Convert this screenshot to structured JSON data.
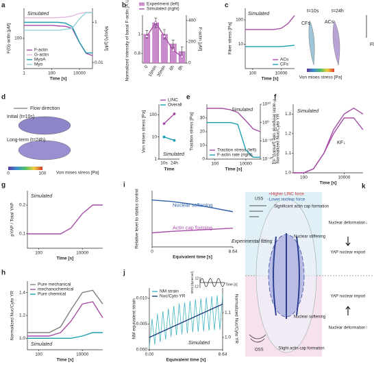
{
  "chart_data": [
    {
      "label": "a",
      "type": "line",
      "x": [
        1,
        3,
        10,
        30,
        100,
        300,
        1000,
        3000,
        10000,
        30000,
        86400
      ],
      "xlim": [
        1,
        86400
      ],
      "xlog": true,
      "xticks": [
        1,
        100,
        10000
      ],
      "xlabel": "Time [s]",
      "ylim": [
        20,
        500
      ],
      "ylog": true,
      "yticks": [
        100
      ],
      "ylabel": "F(G)-actin [μM]",
      "y2lim": [
        0.005,
        5
      ],
      "y2log": true,
      "y2ticks": [
        1,
        0.01
      ],
      "y2label": "Myo(A) [μM]",
      "annotations": [
        "Simulated"
      ],
      "legend": "lower left",
      "series": [
        {
          "name": "F-actin",
          "color": "#a64ca6",
          "values": [
            200,
            200,
            200,
            200,
            200,
            195,
            190,
            170,
            80,
            45,
            40
          ]
        },
        {
          "name": "G-actin",
          "color": "#e3b5de",
          "values": [
            300,
            300,
            300,
            300,
            300,
            305,
            310,
            330,
            380,
            400,
            400
          ]
        },
        {
          "name": "MyoA",
          "color": "#1a9fb0",
          "axis": "y2",
          "values": [
            1,
            1,
            1,
            1,
            1,
            1,
            0.9,
            0.6,
            0.1,
            0.03,
            0.03
          ]
        },
        {
          "name": "Myo",
          "color": "#8fd3da",
          "axis": "y2",
          "values": [
            0.4,
            0.4,
            0.4,
            0.4,
            0.4,
            0.4,
            0.45,
            0.5,
            1.5,
            3,
            3
          ]
        }
      ]
    },
    {
      "label": "b",
      "type": "bar",
      "categories": [
        "0",
        "10min",
        "30min",
        "6h",
        "8h"
      ],
      "ylim": [
        0.7,
        1.2
      ],
      "yticks": [
        0.8,
        1
      ],
      "ylabel": "Normalized intensity of basal F-actin [A.U.]",
      "y2lim": [
        0,
        450
      ],
      "y2ticks": [
        0,
        200,
        400
      ],
      "y2label": "F-actin [μM]",
      "legend": "top",
      "series": [
        {
          "name": "Experiment (left)",
          "color": "#c88ccc",
          "values": [
            1.0,
            1.12,
            1.0,
            0.9,
            0.82
          ],
          "errors": [
            0.04,
            0.05,
            0.05,
            0.04,
            0.05
          ]
        },
        {
          "name": "Simulated (right)",
          "color": "#a64ca6",
          "axis": "y2",
          "values": [
            250,
            380,
            250,
            120,
            60
          ]
        }
      ]
    },
    {
      "label": "c",
      "type": "line",
      "x": [
        30,
        100,
        300,
        1000,
        3000,
        10000,
        30000,
        86400
      ],
      "xlim": [
        30,
        86400
      ],
      "xlog": true,
      "xticks": [
        100,
        10000
      ],
      "xlabel": "Time [s]",
      "ylim": [
        1,
        300
      ],
      "ylog": true,
      "yticks": [
        10,
        100
      ],
      "ylabel": "Fiber stress [Pa]",
      "legend": "lower right",
      "annotations": [
        "Simulated",
        "t=10s",
        "t=24h",
        "CFs",
        "ACs",
        "Flow direction"
      ],
      "colorbar": {
        "label": "Von mises stress [Pa]"
      },
      "series": [
        {
          "name": "ACs",
          "color": "#a64ca6",
          "values": [
            40,
            40,
            40,
            40,
            40,
            45,
            70,
            150
          ]
        },
        {
          "name": "CFs",
          "color": "#1a9fb0",
          "values": [
            8,
            8,
            8,
            8,
            8,
            8,
            8.5,
            9
          ]
        }
      ]
    },
    {
      "label": "d",
      "type": "line",
      "categories": [
        "10s",
        "24h"
      ],
      "xlabel": "Time",
      "ylim": [
        1,
        300
      ],
      "ylog": true,
      "yticks": [
        1,
        10,
        100
      ],
      "ylabel": "Von mises stress [Pa]",
      "legend": "top right",
      "annotations": [
        "Simulated",
        "Flow direction",
        "Initial (t=10s)",
        "Long-term (t=24h)"
      ],
      "colorbar": {
        "ticks": [
          0,
          100
        ],
        "label": "Von mises stress [Pa]"
      },
      "series": [
        {
          "name": "LINC",
          "color": "#a64ca6",
          "values": [
            40,
            110
          ]
        },
        {
          "name": "Overall",
          "color": "#1a9fb0",
          "values": [
            10,
            7
          ]
        }
      ]
    },
    {
      "label": "e",
      "type": "line",
      "x": [
        30,
        100,
        300,
        1000,
        3000,
        10000,
        30000,
        86400
      ],
      "xlim": [
        30,
        86400
      ],
      "xlog": true,
      "xticks": [
        100,
        10000
      ],
      "xlabel": "Time [s]",
      "ylim": [
        0,
        40
      ],
      "yticks": [
        0,
        10,
        20,
        30
      ],
      "ylabel": "Traction stress [Pa]",
      "y2lim": [
        1e-20,
        10000000000.0
      ],
      "y2log": true,
      "y2ticks": [
        {
          "value": 10000000000.0,
          "label": "10¹⁰"
        },
        {
          "value": 1,
          "label": "10⁰"
        },
        {
          "value": 1e-10,
          "label": "10⁻¹⁰"
        },
        {
          "value": 1e-20,
          "label": "10⁻²⁰"
        }
      ],
      "y2label": "F-actin temporal rate [μmol/(L·s)]",
      "annotations": [
        "Simulated"
      ],
      "legend": "lower left",
      "series": [
        {
          "name": "Traction stress (left)",
          "color": "#a64ca6",
          "values": [
            37,
            37,
            37,
            36,
            34,
            28,
            22,
            20
          ]
        },
        {
          "name": "F-actin rate (right)",
          "color": "#1a9fb0",
          "axis": "y2",
          "values": [
            1,
            1,
            1,
            1,
            0.1,
            1e-15,
            1e-19,
            1e-19
          ]
        }
      ]
    },
    {
      "label": "f",
      "type": "line",
      "x": [
        30,
        100,
        300,
        1000,
        3000,
        10000,
        30000,
        86400
      ],
      "xlim": [
        30,
        86400
      ],
      "xlog": true,
      "xticks": [
        100,
        10000
      ],
      "xlabel": "Time [s]",
      "ylim": [
        1,
        1.35
      ],
      "yticks": [
        {
          "value": 1,
          "label": "1.0"
        },
        1.1,
        1.2,
        1.3
      ],
      "ylabel": "Normalized Nuc/Cyto YR",
      "annotations": [
        "Simulated",
        "KF↓"
      ],
      "series": [
        {
          "color": "#a64ca6",
          "values": [
            1,
            1,
            1.02,
            1.1,
            1.22,
            1.3,
            1.33,
            1.3
          ]
        },
        {
          "color": "#a64ca6",
          "values": [
            1,
            1,
            1.02,
            1.1,
            1.2,
            1.28,
            1.28,
            1.22
          ]
        }
      ]
    },
    {
      "label": "g",
      "type": "line",
      "x": [
        30,
        100,
        300,
        1000,
        3000,
        10000,
        30000,
        86400
      ],
      "xlim": [
        30,
        86400
      ],
      "xlog": true,
      "xticks": [
        100,
        10000
      ],
      "xlabel": "Time [s]",
      "ylim": [
        0.05,
        0.25
      ],
      "yticks": [
        0.1,
        0.2
      ],
      "ylabel": "pYAP / Total YAP",
      "annotations": [
        "Simulated"
      ],
      "series": [
        {
          "color": "#a64ca6",
          "values": [
            0.1,
            0.1,
            0.1,
            0.1,
            0.12,
            0.17,
            0.2,
            0.2
          ]
        }
      ]
    },
    {
      "label": "h",
      "type": "line",
      "x": [
        30,
        100,
        300,
        1000,
        3000,
        10000,
        30000,
        86400
      ],
      "xlim": [
        30,
        86400
      ],
      "xlog": true,
      "xticks": [
        100,
        10000
      ],
      "xlabel": "Time [s]",
      "ylim": [
        0.9,
        1.5
      ],
      "yticks": [
        {
          "value": 1,
          "label": "1.0"
        },
        1.2,
        1.4
      ],
      "ylabel": "Normalized Nuc/Cyto YR",
      "annotations": [
        "Simulated"
      ],
      "legend": "top left",
      "series": [
        {
          "name": "Pure mechanical",
          "color": "#7f7f7f",
          "values": [
            1.05,
            1.05,
            1.05,
            1.1,
            1.25,
            1.4,
            1.42,
            1.3
          ]
        },
        {
          "name": "mechanochemical",
          "color": "#a64ca6",
          "values": [
            1.02,
            1.02,
            1.02,
            1.05,
            1.15,
            1.3,
            1.32,
            1.18
          ]
        },
        {
          "name": "Pure chemical",
          "color": "#1a9fb0",
          "values": [
            1,
            1,
            1,
            1,
            1,
            1.02,
            1.05,
            1.05
          ]
        }
      ]
    },
    {
      "label": "i",
      "type": "line",
      "x": [
        0,
        2,
        4,
        6,
        8.64
      ],
      "xlim": [
        0,
        8.64
      ],
      "xticks": [
        0,
        8.64
      ],
      "xlabel": "Equivalent time [s]",
      "ylim": [
        0,
        1.2
      ],
      "yticks": [],
      "ylabel": "Relative level to statics control",
      "annotations": [
        "Experimental fitting"
      ],
      "legend": "inline",
      "series": [
        {
          "name": "Nuclear softening",
          "color": "#2e5fa8",
          "values": [
            1.0,
            0.97,
            0.92,
            0.85,
            0.75
          ]
        },
        {
          "name": "Actin cap forming",
          "color": "#a64ca6",
          "values": [
            0.3,
            0.33,
            0.35,
            0.37,
            0.4
          ]
        }
      ]
    },
    {
      "label": "j",
      "type": "line",
      "x": [
        0,
        0.32,
        0.64,
        0.96,
        1.28,
        1.6,
        1.92,
        2.24,
        2.56,
        2.88,
        3.2,
        3.52,
        3.84,
        4.16,
        4.48,
        4.8,
        5.12,
        5.44,
        5.76,
        6.08,
        6.4,
        6.72,
        7.04,
        7.36,
        7.68,
        8,
        8.32,
        8.64
      ],
      "xlim": [
        0,
        8.64
      ],
      "xticks": [
        {
          "value": 0,
          "label": "0.00"
        },
        8.64
      ],
      "xlabel": "Equivalent time [s]",
      "ylim": [
        0,
        0.012
      ],
      "yticks": [
        {
          "value": 0,
          "label": "0.000"
        },
        0.005,
        {
          "value": 0.01,
          "label": "0.010"
        }
      ],
      "ylabel": "NM equivalent strain",
      "y2lim": [
        0.95,
        1.2
      ],
      "y2ticks": [
        {
          "value": 1,
          "label": "1.0"
        },
        1.1
      ],
      "y2label": "Normalized Nuc/Cyto YR",
      "annotations": [
        "Simulated"
      ],
      "legend": "top left",
      "inset": {
        "ylabel": "WSS [dyne/cm²]",
        "yticks": [
          12,
          -12
        ],
        "xlabel": "Time [s]"
      },
      "series": [
        {
          "name": "NM strain",
          "color": "#3fb3c2",
          "values": [
            0.0005,
            0.006,
            0.001,
            0.007,
            0.0015,
            0.0075,
            0.002,
            0.008,
            0.0025,
            0.0085,
            0.0028,
            0.009,
            0.003,
            0.0092,
            0.0032,
            0.0095,
            0.0034,
            0.0098,
            0.0035,
            0.01,
            0.0036,
            0.0102,
            0.0037,
            0.0104,
            0.0038,
            0.0106,
            0.0039,
            0.0107
          ]
        },
        {
          "name": "Nuc/Cyto YR",
          "color": "#1f3f7a",
          "axis": "y2",
          "values": [
            1.0,
            1.005,
            1.01,
            1.015,
            1.02,
            1.025,
            1.03,
            1.035,
            1.04,
            1.045,
            1.05,
            1.055,
            1.06,
            1.065,
            1.07,
            1.075,
            1.08,
            1.085,
            1.09,
            1.095,
            1.1,
            1.105,
            1.11,
            1.115,
            1.12,
            1.125,
            1.13,
            1.135
          ]
        }
      ]
    }
  ],
  "diagram": {
    "label": "k",
    "uss": "USS",
    "oss": "OSS",
    "linc": "+Higher LINC force",
    "nforce": "-Lower nuclear force",
    "cap_sig": "Significant actin cap formation",
    "stiff": "Nuclear stiffening",
    "soft": "Nuclear softening",
    "cap_slight": "Slight actin cap formation",
    "def_down": "Nuclear deformation↓",
    "export": "YAP nuclear export",
    "import": "YAP nuclear import",
    "def_up": "Nuclear deformation↑"
  }
}
